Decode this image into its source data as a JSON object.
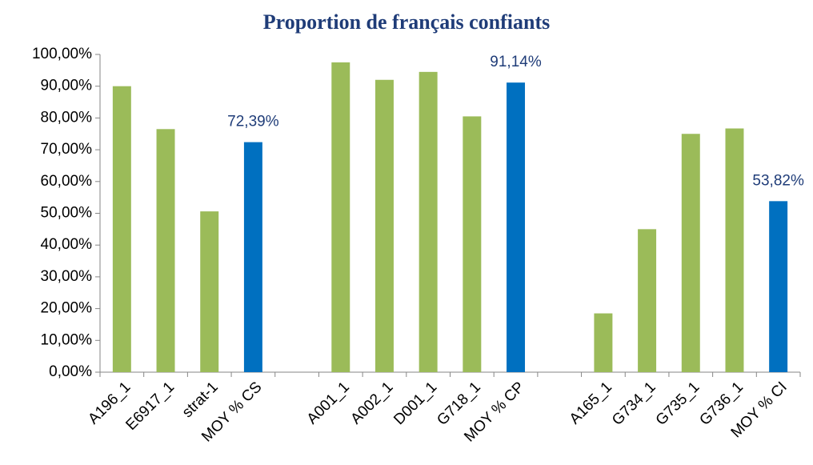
{
  "chart_data": {
    "type": "bar",
    "title": "Proportion de français confiants",
    "categories": [
      "A196_1",
      "E6917_1",
      "strat-1",
      "MOY % CS",
      null,
      "A001_1",
      "A002_1",
      "D001_1",
      "G718_1",
      "MOY % CP",
      null,
      "A165_1",
      "G734_1",
      "G735_1",
      "G736_1",
      "MOY % CI"
    ],
    "values": [
      90,
      76.5,
      50.6,
      72.39,
      null,
      97.5,
      92,
      94.5,
      80.5,
      91.14,
      null,
      18.5,
      45,
      75,
      76.7,
      53.82
    ],
    "value_labels": [
      null,
      null,
      null,
      "72,39%",
      null,
      null,
      null,
      null,
      null,
      "91,14%",
      null,
      null,
      null,
      null,
      null,
      "53,82%"
    ],
    "colors": [
      "#9bbb59",
      "#9bbb59",
      "#9bbb59",
      "#0070c0",
      null,
      "#9bbb59",
      "#9bbb59",
      "#9bbb59",
      "#9bbb59",
      "#0070c0",
      null,
      "#9bbb59",
      "#9bbb59",
      "#9bbb59",
      "#9bbb59",
      "#0070c0"
    ],
    "ylim": [
      0,
      100
    ],
    "yticks": [
      {
        "value": 0,
        "label": "0,00%"
      },
      {
        "value": 10,
        "label": "10,00%"
      },
      {
        "value": 20,
        "label": "20,00%"
      },
      {
        "value": 30,
        "label": "30,00%"
      },
      {
        "value": 40,
        "label": "40,00%"
      },
      {
        "value": 50,
        "label": "50,00%"
      },
      {
        "value": 60,
        "label": "60,00%"
      },
      {
        "value": 70,
        "label": "70,00%"
      },
      {
        "value": 80,
        "label": "80,00%"
      },
      {
        "value": 90,
        "label": "90,00%"
      },
      {
        "value": 100,
        "label": "100,00%"
      }
    ],
    "grid": false
  }
}
